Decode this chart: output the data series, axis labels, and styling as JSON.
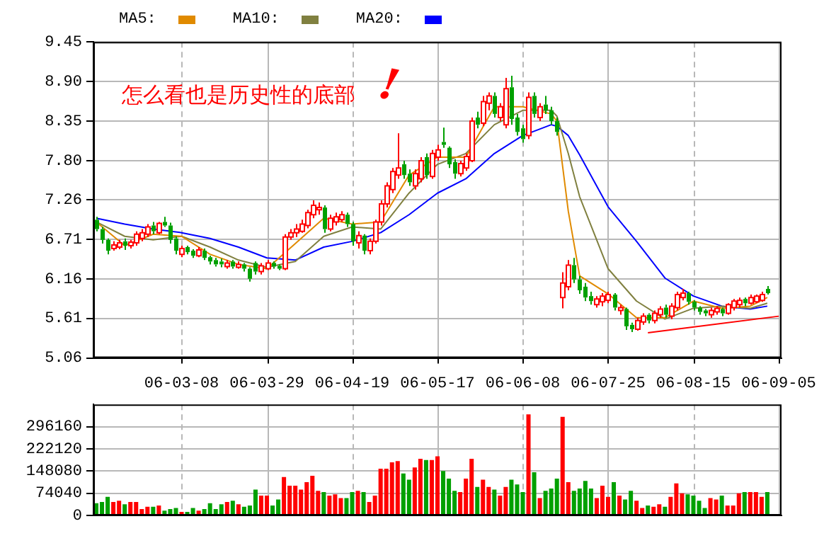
{
  "chart_data": [
    {
      "type": "candlestick",
      "annotations": [
        "怎么看也是历史性的底部",
        "!"
      ],
      "categories": [
        null,
        null,
        null,
        null,
        null,
        null,
        null,
        null,
        null,
        null,
        null,
        null,
        null,
        null,
        null,
        "06-03-08",
        null,
        null,
        null,
        null,
        null,
        null,
        null,
        null,
        null,
        null,
        null,
        null,
        null,
        null,
        "06-03-29",
        null,
        null,
        null,
        null,
        null,
        null,
        null,
        null,
        null,
        null,
        null,
        null,
        null,
        null,
        "06-04-19",
        null,
        null,
        null,
        null,
        null,
        null,
        null,
        null,
        null,
        null,
        null,
        null,
        null,
        null,
        "06-05-17",
        null,
        null,
        null,
        null,
        null,
        null,
        null,
        null,
        null,
        null,
        null,
        null,
        null,
        null,
        "06-06-08",
        null,
        null,
        null,
        null,
        null,
        null,
        null,
        null,
        null,
        null,
        null,
        null,
        null,
        null,
        "06-07-25",
        null,
        null,
        null,
        null,
        null,
        null,
        null,
        null,
        null,
        null,
        null,
        null,
        null,
        null,
        "06-08-15",
        null,
        null,
        null,
        null,
        null,
        null,
        null,
        null,
        null,
        null,
        null,
        null,
        null,
        null,
        "06-09-05"
      ],
      "ohlc": [
        [
          6.98,
          7.02,
          6.82,
          6.85
        ],
        [
          6.85,
          6.88,
          6.65,
          6.7
        ],
        [
          6.7,
          6.72,
          6.5,
          6.55
        ],
        [
          6.58,
          6.68,
          6.55,
          6.63
        ],
        [
          6.6,
          6.7,
          6.57,
          6.66
        ],
        [
          6.68,
          6.72,
          6.56,
          6.62
        ],
        [
          6.62,
          6.7,
          6.58,
          6.67
        ],
        [
          6.66,
          6.82,
          6.62,
          6.78
        ],
        [
          6.72,
          6.85,
          6.68,
          6.8
        ],
        [
          6.78,
          6.92,
          6.74,
          6.88
        ],
        [
          6.9,
          6.95,
          6.78,
          6.82
        ],
        [
          6.8,
          6.95,
          6.78,
          6.93
        ],
        [
          6.95,
          7.02,
          6.88,
          6.9
        ],
        [
          6.9,
          6.94,
          6.65,
          6.7
        ],
        [
          6.72,
          6.75,
          6.5,
          6.55
        ],
        [
          6.5,
          6.62,
          6.46,
          6.58
        ],
        [
          6.6,
          6.62,
          6.5,
          6.53
        ],
        [
          6.55,
          6.57,
          6.45,
          6.48
        ],
        [
          6.48,
          6.6,
          6.46,
          6.56
        ],
        [
          6.55,
          6.58,
          6.42,
          6.45
        ],
        [
          6.46,
          6.48,
          6.36,
          6.4
        ],
        [
          6.42,
          6.45,
          6.33,
          6.36
        ],
        [
          6.4,
          6.44,
          6.32,
          6.36
        ],
        [
          6.33,
          6.42,
          6.3,
          6.38
        ],
        [
          6.4,
          6.42,
          6.3,
          6.33
        ],
        [
          6.32,
          6.4,
          6.3,
          6.36
        ],
        [
          6.36,
          6.38,
          6.26,
          6.3
        ],
        [
          6.3,
          6.32,
          6.12,
          6.16
        ],
        [
          6.38,
          6.4,
          6.22,
          6.26
        ],
        [
          6.26,
          6.38,
          6.22,
          6.34
        ],
        [
          6.3,
          6.42,
          6.28,
          6.38
        ],
        [
          6.38,
          6.4,
          6.3,
          6.33
        ],
        [
          6.34,
          6.36,
          6.28,
          6.3
        ],
        [
          6.3,
          6.78,
          6.28,
          6.74
        ],
        [
          6.74,
          6.85,
          6.7,
          6.8
        ],
        [
          6.8,
          6.92,
          6.74,
          6.85
        ],
        [
          6.82,
          6.98,
          6.8,
          6.92
        ],
        [
          6.9,
          7.12,
          6.86,
          7.08
        ],
        [
          7.05,
          7.25,
          7.0,
          7.18
        ],
        [
          7.12,
          7.22,
          7.05,
          7.15
        ],
        [
          7.15,
          7.18,
          6.8,
          6.85
        ],
        [
          6.85,
          7.05,
          6.82,
          7.0
        ],
        [
          6.95,
          7.08,
          6.9,
          7.02
        ],
        [
          6.98,
          7.1,
          6.95,
          7.05
        ],
        [
          7.05,
          7.08,
          6.88,
          6.92
        ],
        [
          6.92,
          6.95,
          6.62,
          6.68
        ],
        [
          6.66,
          6.82,
          6.58,
          6.76
        ],
        [
          6.76,
          6.78,
          6.5,
          6.55
        ],
        [
          6.55,
          6.72,
          6.5,
          6.68
        ],
        [
          6.68,
          6.98,
          6.65,
          6.95
        ],
        [
          6.95,
          7.25,
          6.9,
          7.2
        ],
        [
          7.2,
          7.5,
          7.15,
          7.45
        ],
        [
          7.4,
          7.7,
          7.35,
          7.65
        ],
        [
          7.6,
          8.18,
          7.55,
          7.7
        ],
        [
          7.75,
          7.8,
          7.55,
          7.6
        ],
        [
          7.62,
          7.68,
          7.45,
          7.5
        ],
        [
          7.45,
          7.68,
          7.4,
          7.62
        ],
        [
          7.55,
          7.85,
          7.5,
          7.8
        ],
        [
          7.85,
          7.9,
          7.55,
          7.6
        ],
        [
          7.58,
          7.95,
          7.55,
          7.9
        ],
        [
          7.85,
          8.02,
          7.8,
          7.95
        ],
        [
          8.06,
          8.26,
          7.98,
          8.02
        ],
        [
          7.98,
          8.0,
          7.7,
          7.75
        ],
        [
          7.78,
          7.82,
          7.55,
          7.62
        ],
        [
          7.62,
          7.8,
          7.58,
          7.76
        ],
        [
          7.7,
          7.9,
          7.66,
          7.86
        ],
        [
          7.8,
          8.4,
          7.78,
          8.35
        ],
        [
          8.4,
          8.48,
          8.25,
          8.3
        ],
        [
          8.32,
          8.7,
          8.28,
          8.62
        ],
        [
          8.6,
          8.75,
          8.5,
          8.7
        ],
        [
          8.7,
          8.75,
          8.4,
          8.45
        ],
        [
          8.4,
          8.6,
          8.35,
          8.55
        ],
        [
          8.3,
          8.95,
          8.25,
          8.8
        ],
        [
          8.82,
          8.98,
          8.3,
          8.38
        ],
        [
          8.4,
          8.45,
          8.15,
          8.2
        ],
        [
          8.25,
          8.3,
          8.05,
          8.1
        ],
        [
          8.15,
          8.75,
          8.1,
          8.68
        ],
        [
          8.7,
          8.75,
          8.4,
          8.45
        ],
        [
          8.4,
          8.6,
          8.35,
          8.55
        ],
        [
          8.58,
          8.7,
          8.45,
          8.5
        ],
        [
          8.5,
          8.55,
          8.3,
          8.35
        ],
        [
          8.35,
          8.4,
          8.15,
          8.2
        ],
        [
          5.9,
          6.25,
          5.75,
          6.1
        ],
        [
          6.05,
          6.42,
          6.0,
          6.35
        ],
        [
          6.35,
          6.45,
          6.1,
          6.15
        ],
        [
          6.15,
          6.2,
          5.95,
          6.0
        ],
        [
          6.05,
          6.1,
          5.85,
          5.9
        ],
        [
          5.92,
          5.98,
          5.8,
          5.85
        ],
        [
          5.8,
          5.92,
          5.76,
          5.88
        ],
        [
          5.84,
          5.96,
          5.78,
          5.92
        ],
        [
          5.86,
          5.98,
          5.82,
          5.94
        ],
        [
          5.94,
          5.96,
          5.72,
          5.76
        ],
        [
          5.72,
          5.8,
          5.66,
          5.76
        ],
        [
          5.74,
          5.76,
          5.45,
          5.5
        ],
        [
          5.52,
          5.55,
          5.42,
          5.46
        ],
        [
          5.46,
          5.62,
          5.44,
          5.58
        ],
        [
          5.56,
          5.68,
          5.52,
          5.64
        ],
        [
          5.66,
          5.68,
          5.54,
          5.58
        ],
        [
          5.58,
          5.72,
          5.54,
          5.68
        ],
        [
          5.66,
          5.78,
          5.62,
          5.74
        ],
        [
          5.76,
          5.8,
          5.62,
          5.66
        ],
        [
          5.64,
          5.82,
          5.6,
          5.78
        ],
        [
          5.76,
          5.98,
          5.72,
          5.94
        ],
        [
          5.9,
          6.02,
          5.86,
          5.96
        ],
        [
          5.96,
          5.98,
          5.8,
          5.84
        ],
        [
          5.84,
          5.86,
          5.72,
          5.76
        ],
        [
          5.76,
          5.78,
          5.66,
          5.7
        ],
        [
          5.72,
          5.74,
          5.64,
          5.68
        ],
        [
          5.66,
          5.76,
          5.62,
          5.72
        ],
        [
          5.7,
          5.78,
          5.66,
          5.75
        ],
        [
          5.74,
          5.76,
          5.64,
          5.68
        ],
        [
          5.68,
          5.82,
          5.66,
          5.8
        ],
        [
          5.76,
          5.88,
          5.72,
          5.85
        ],
        [
          5.8,
          5.9,
          5.76,
          5.86
        ],
        [
          5.88,
          5.9,
          5.78,
          5.82
        ],
        [
          5.82,
          5.94,
          5.8,
          5.9
        ],
        [
          5.84,
          5.94,
          5.82,
          5.92
        ],
        [
          5.86,
          5.98,
          5.84,
          5.94
        ],
        [
          6.02,
          6.06,
          5.94,
          5.96
        ],
        null,
        null
      ],
      "series": [
        {
          "name": "MA5:",
          "type": "line",
          "color": "#e08a00",
          "values": [
            6.95,
            null,
            null,
            null,
            null,
            6.62,
            null,
            null,
            null,
            null,
            6.78,
            null,
            null,
            null,
            null,
            6.75,
            null,
            null,
            null,
            null,
            6.5,
            null,
            null,
            null,
            null,
            6.36,
            null,
            null,
            null,
            null,
            6.3,
            null,
            null,
            null,
            null,
            6.65,
            null,
            null,
            null,
            null,
            7.0,
            null,
            null,
            null,
            null,
            6.92,
            null,
            null,
            null,
            null,
            6.95,
            null,
            null,
            null,
            null,
            7.6,
            null,
            null,
            null,
            null,
            7.85,
            null,
            null,
            null,
            null,
            7.85,
            null,
            null,
            null,
            null,
            8.55,
            null,
            null,
            null,
            null,
            8.55,
            null,
            null,
            null,
            null,
            8.45,
            8.35,
            null,
            7.1,
            null,
            6.2,
            null,
            null,
            null,
            null,
            5.95,
            null,
            null,
            null,
            null,
            5.62,
            null,
            null,
            null,
            null,
            5.62,
            null,
            null,
            null,
            null,
            5.85,
            null,
            null,
            null,
            null,
            5.75,
            null,
            null,
            null,
            null,
            5.78,
            null,
            null,
            5.9,
            null,
            null
          ]
        },
        {
          "name": "MA10:",
          "type": "line",
          "color": "#808040",
          "values": [
            6.95,
            null,
            null,
            null,
            null,
            6.75,
            null,
            null,
            null,
            null,
            6.7,
            null,
            null,
            null,
            null,
            6.75,
            null,
            null,
            null,
            null,
            6.6,
            null,
            null,
            null,
            null,
            6.42,
            null,
            null,
            null,
            null,
            6.32,
            null,
            null,
            null,
            null,
            6.4,
            null,
            null,
            null,
            null,
            6.75,
            null,
            null,
            null,
            null,
            6.88,
            null,
            null,
            null,
            null,
            6.85,
            null,
            null,
            null,
            null,
            7.35,
            null,
            null,
            null,
            null,
            7.75,
            null,
            null,
            null,
            null,
            7.9,
            null,
            null,
            null,
            null,
            8.3,
            null,
            null,
            null,
            null,
            8.5,
            null,
            null,
            null,
            null,
            8.5,
            8.42,
            null,
            7.9,
            null,
            7.3,
            null,
            null,
            null,
            null,
            6.3,
            null,
            null,
            null,
            null,
            5.85,
            null,
            null,
            null,
            null,
            5.6,
            null,
            null,
            null,
            null,
            5.75,
            null,
            null,
            null,
            null,
            5.78,
            null,
            null,
            null,
            null,
            5.75,
            null,
            null,
            5.82,
            null,
            null
          ]
        },
        {
          "name": "MA20:",
          "type": "line",
          "color": "#0000ff",
          "values": [
            7.0,
            null,
            null,
            null,
            null,
            6.92,
            null,
            null,
            null,
            null,
            6.85,
            null,
            null,
            null,
            null,
            6.8,
            null,
            null,
            null,
            null,
            6.72,
            null,
            null,
            null,
            null,
            6.6,
            null,
            null,
            null,
            null,
            6.45,
            null,
            null,
            null,
            null,
            6.42,
            null,
            null,
            null,
            null,
            6.6,
            null,
            null,
            null,
            null,
            6.68,
            null,
            null,
            null,
            null,
            6.8,
            null,
            null,
            null,
            null,
            7.05,
            null,
            null,
            null,
            null,
            7.35,
            null,
            null,
            null,
            null,
            7.55,
            null,
            null,
            null,
            null,
            7.9,
            null,
            null,
            null,
            null,
            8.15,
            null,
            null,
            null,
            null,
            8.3,
            8.28,
            null,
            8.15,
            null,
            7.88,
            null,
            null,
            null,
            null,
            7.16,
            null,
            null,
            null,
            null,
            6.68,
            null,
            null,
            null,
            null,
            6.17,
            null,
            null,
            null,
            null,
            5.92,
            null,
            null,
            null,
            null,
            5.78,
            null,
            null,
            null,
            null,
            5.74,
            null,
            null,
            5.78,
            null,
            null
          ]
        },
        {
          "type": "line",
          "color": "#ff0000",
          "values": [
            null,
            null,
            null,
            null,
            null,
            null,
            null,
            null,
            null,
            null,
            null,
            null,
            null,
            null,
            null,
            null,
            null,
            null,
            null,
            null,
            null,
            null,
            null,
            null,
            null,
            null,
            null,
            null,
            null,
            null,
            null,
            null,
            null,
            null,
            null,
            null,
            null,
            null,
            null,
            null,
            null,
            null,
            null,
            null,
            null,
            null,
            null,
            null,
            null,
            null,
            null,
            null,
            null,
            null,
            null,
            null,
            null,
            null,
            null,
            null,
            null,
            null,
            null,
            null,
            null,
            null,
            null,
            null,
            null,
            null,
            null,
            null,
            null,
            null,
            null,
            null,
            null,
            null,
            null,
            null,
            null,
            null,
            null,
            null,
            null,
            null,
            null,
            null,
            null,
            null,
            null,
            null,
            null,
            null,
            null,
            null,
            null,
            5.41,
            null,
            null,
            null,
            null,
            null,
            null,
            null,
            null,
            null,
            null,
            null,
            null,
            null,
            null,
            null,
            null,
            null,
            null,
            null,
            null,
            null,
            null,
            5.64
          ]
        }
      ],
      "ylim": [
        5.06,
        9.45
      ],
      "yticks": [
        5.06,
        5.61,
        6.16,
        6.71,
        7.26,
        {
          "value": 7.8,
          "label": "7.80"
        },
        8.35,
        {
          "value": 8.9,
          "label": "8.90"
        },
        9.45
      ],
      "grid": true,
      "legend": "top left",
      "marker": "none"
    },
    {
      "type": "bar",
      "tick_labels": "y",
      "categories": [
        null,
        null,
        null,
        null,
        null,
        null,
        null,
        null,
        null,
        null,
        null,
        null,
        null,
        null,
        null,
        null,
        null,
        null,
        null,
        null,
        null,
        null,
        null,
        null,
        null,
        null,
        null,
        null,
        null,
        null,
        null,
        null,
        null,
        null,
        null,
        null,
        null,
        null,
        null,
        null,
        null,
        null,
        null,
        null,
        null,
        null,
        null,
        null,
        null,
        null,
        null,
        null,
        null,
        null,
        null,
        null,
        null,
        null,
        null,
        null,
        null,
        null,
        null,
        null,
        null,
        null,
        null,
        null,
        null,
        null,
        null,
        null,
        null,
        null,
        null,
        null,
        null,
        null,
        null,
        null,
        null,
        null,
        null,
        null,
        null,
        null,
        null,
        null,
        null,
        null,
        null,
        null,
        null,
        null,
        null,
        null,
        null,
        null,
        null,
        null,
        null,
        null,
        null,
        null,
        null,
        null,
        null,
        null,
        null,
        null,
        null,
        null,
        null,
        null,
        null,
        null,
        null,
        null,
        null,
        null,
        null
      ],
      "values": [
        41000,
        45000,
        62000,
        45000,
        49000,
        37000,
        45000,
        45000,
        21000,
        29000,
        29000,
        33000,
        16000,
        21000,
        25000,
        12000,
        12000,
        25000,
        16000,
        21000,
        41000,
        21000,
        37000,
        45000,
        49000,
        37000,
        29000,
        33000,
        86000,
        66000,
        66000,
        33000,
        53000,
        128000,
        99000,
        99000,
        86000,
        111000,
        132000,
        82000,
        78000,
        66000,
        70000,
        58000,
        58000,
        78000,
        82000,
        78000,
        45000,
        66000,
        156000,
        156000,
        177000,
        181000,
        140000,
        119000,
        160000,
        189000,
        185000,
        185000,
        197000,
        148000,
        123000,
        82000,
        78000,
        123000,
        189000,
        95000,
        119000,
        95000,
        86000,
        66000,
        95000,
        119000,
        103000,
        78000,
        337000,
        144000,
        58000,
        82000,
        90000,
        123000,
        329000,
        111000,
        82000,
        90000,
        115000,
        90000,
        58000,
        99000,
        62000,
        111000,
        66000,
        53000,
        82000,
        49000,
        25000,
        33000,
        29000,
        37000,
        29000,
        62000,
        107000,
        74000,
        70000,
        66000,
        49000,
        25000,
        58000,
        53000,
        66000,
        33000,
        33000,
        74000,
        78000,
        78000,
        78000,
        62000,
        78000,
        null,
        null
      ],
      "colors": [
        "#00a000",
        "#00a000",
        "#00a000",
        "#ff0000",
        "#ff0000",
        "#00a000",
        "#ff0000",
        "#ff0000",
        "#ff0000",
        "#ff0000",
        "#00a000",
        "#ff0000",
        "#00a000",
        "#00a000",
        "#00a000",
        "#ff0000",
        "#00a000",
        "#00a000",
        "#ff0000",
        "#00a000",
        "#00a000",
        "#00a000",
        "#00a000",
        "#ff0000",
        "#00a000",
        "#ff0000",
        "#00a000",
        "#00a000",
        "#00a000",
        "#ff0000",
        "#ff0000",
        "#00a000",
        "#00a000",
        "#ff0000",
        "#ff0000",
        "#ff0000",
        "#ff0000",
        "#ff0000",
        "#ff0000",
        "#ff0000",
        "#00a000",
        "#ff0000",
        "#ff0000",
        "#ff0000",
        "#00a000",
        "#00a000",
        "#ff0000",
        "#00a000",
        "#ff0000",
        "#ff0000",
        "#ff0000",
        "#ff0000",
        "#ff0000",
        "#ff0000",
        "#00a000",
        "#00a000",
        "#ff0000",
        "#ff0000",
        "#00a000",
        "#ff0000",
        "#ff0000",
        "#00a000",
        "#00a000",
        "#00a000",
        "#ff0000",
        "#ff0000",
        "#ff0000",
        "#00a000",
        "#ff0000",
        "#ff0000",
        "#00a000",
        "#ff0000",
        "#ff0000",
        "#00a000",
        "#00a000",
        "#00a000",
        "#ff0000",
        "#00a000",
        "#ff0000",
        "#00a000",
        "#00a000",
        "#00a000",
        "#ff0000",
        "#ff0000",
        "#00a000",
        "#00a000",
        "#00a000",
        "#00a000",
        "#ff0000",
        "#ff0000",
        "#ff0000",
        "#00a000",
        "#ff0000",
        "#00a000",
        "#00a000",
        "#ff0000",
        "#ff0000",
        "#00a000",
        "#ff0000",
        "#ff0000",
        "#00a000",
        "#ff0000",
        "#ff0000",
        "#ff0000",
        "#00a000",
        "#00a000",
        "#00a000",
        "#00a000",
        "#ff0000",
        "#ff0000",
        "#00a000",
        "#ff0000",
        "#ff0000",
        "#ff0000",
        "#00a000",
        "#ff0000",
        "#ff0000",
        "#ff0000",
        "#00a000",
        null,
        null
      ],
      "ylim": [
        0,
        370200
      ],
      "yticks": [
        0,
        74040,
        148080,
        222120,
        296160
      ],
      "grid": true
    }
  ]
}
